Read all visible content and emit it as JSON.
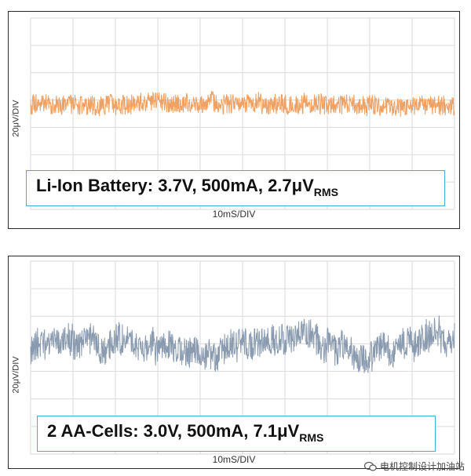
{
  "chart_data": [
    {
      "type": "line",
      "ylabel": "20μV/DIV",
      "xlabel": "10mS/DIV",
      "caption_main": "Li-Ion Battery: 3.7V, 500mA, 2.7μV",
      "caption_sub": "RMS",
      "grid": true,
      "x_divisions": 10,
      "y_divisions": 7,
      "color": "#f0a060",
      "noise_rms_uv": 2.7,
      "series": [
        {
          "values": []
        }
      ]
    },
    {
      "type": "line",
      "ylabel": "20μV/DIV",
      "xlabel": "10mS/DIV",
      "caption_main": "2 AA-Cells: 3.0V, 500mA, 7.1μV",
      "caption_sub": "RMS",
      "grid": true,
      "x_divisions": 10,
      "y_divisions": 7,
      "color": "#8a9bb0",
      "noise_rms_uv": 7.1,
      "series": [
        {
          "values": []
        }
      ]
    }
  ],
  "watermark": {
    "icon": "wechat-icon",
    "text": "电机控制设计加油站"
  }
}
